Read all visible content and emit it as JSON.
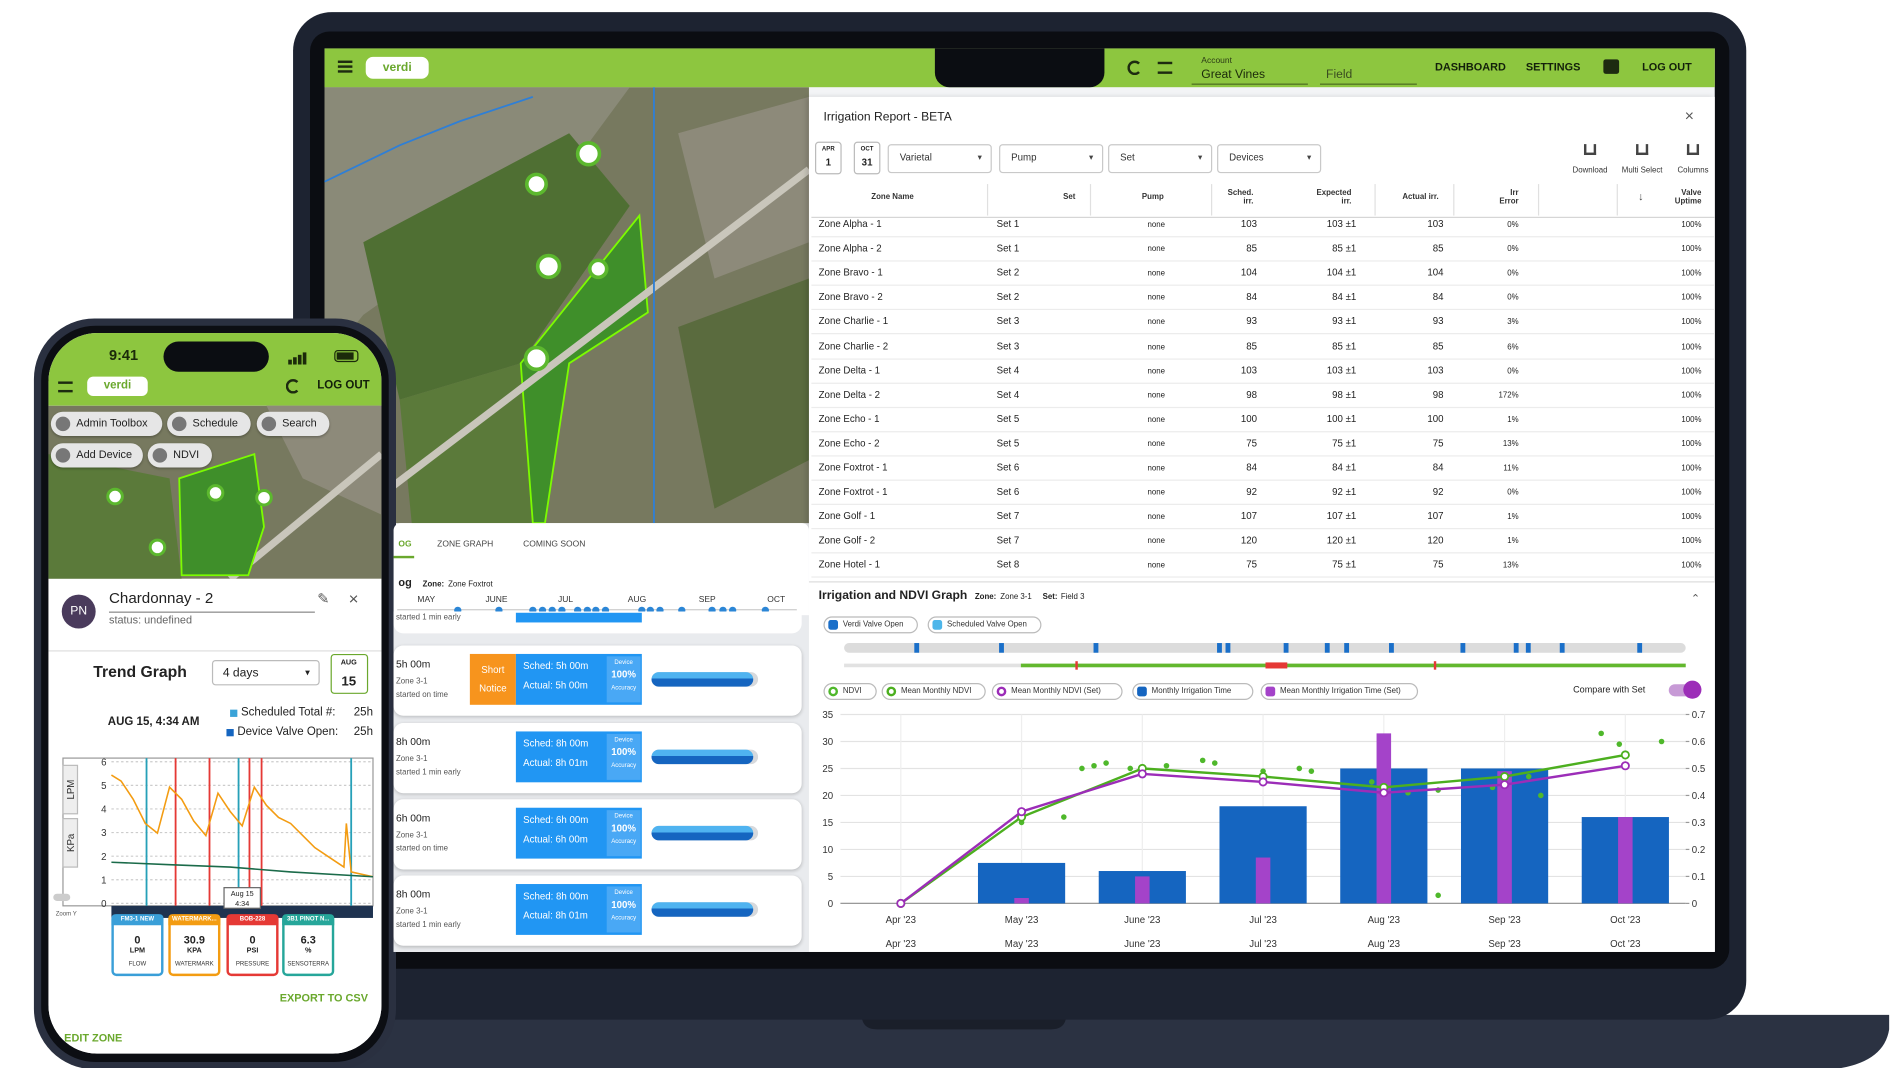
{
  "laptop": {
    "header": {
      "logo": "verdi",
      "account_label": "Account",
      "account": "Great Vines",
      "field": "Field",
      "nav": [
        "DASHBOARD",
        "SETTINGS",
        "LOG OUT"
      ]
    },
    "log_panel": {
      "tabs": [
        "OG",
        "ZONE GRAPH",
        "COMING SOON"
      ],
      "title": "og",
      "zone_label": "Zone:",
      "zone": "Zone Foxtrot",
      "months": [
        "MAY",
        "JUNE",
        "JUL",
        "AUG",
        "SEP",
        "OCT"
      ],
      "first_note": "started 1 min early",
      "cards": [
        {
          "duration": "5h 00m",
          "zone": "Zone 3-1",
          "note": "started on time",
          "badge": "Short Notice",
          "sched": "Sched: 5h 00m",
          "actual": "Actual: 5h 00m",
          "accuracy": [
            "Device",
            "100%",
            "Accuracy"
          ]
        },
        {
          "duration": "8h 00m",
          "zone": "Zone 3-1",
          "note": "started 1 min early",
          "sched": "Sched: 8h 00m",
          "actual": "Actual: 8h 01m",
          "accuracy": [
            "Device",
            "100%",
            "Accuracy"
          ]
        },
        {
          "duration": "6h 00m",
          "zone": "Zone 3-1",
          "note": "started on time",
          "sched": "Sched: 6h 00m",
          "actual": "Actual: 6h 00m",
          "accuracy": [
            "Device",
            "100%",
            "Accuracy"
          ]
        },
        {
          "duration": "8h 00m",
          "zone": "Zone 3-1",
          "note": "started 1 min early",
          "sched": "Sched: 8h 00m",
          "actual": "Actual: 8h 01m",
          "accuracy": [
            "Device",
            "100%",
            "Accuracy"
          ]
        }
      ]
    },
    "report": {
      "title": "Irrigation Report - BETA",
      "from": {
        "month": "APR",
        "day": "1"
      },
      "to": {
        "month": "OCT",
        "day": "31"
      },
      "filters": [
        "Varietal",
        "Pump",
        "Set",
        "Devices"
      ],
      "tools": [
        "Download",
        "Multi Select",
        "Columns"
      ],
      "columns": [
        "Zone Name",
        "Set",
        "Pump",
        "Sched. irr.",
        "Expected irr.",
        "Actual irr.",
        "Irr Error",
        "Valve Uptime"
      ],
      "rows": [
        [
          "Zone Alpha - 1",
          "Set 1",
          "none",
          "103",
          "103 ±1",
          "103",
          "0%",
          "100%"
        ],
        [
          "Zone Alpha - 2",
          "Set 1",
          "none",
          "85",
          "85 ±1",
          "85",
          "0%",
          "100%"
        ],
        [
          "Zone Bravo - 1",
          "Set 2",
          "none",
          "104",
          "104 ±1",
          "104",
          "0%",
          "100%"
        ],
        [
          "Zone Bravo - 2",
          "Set 2",
          "none",
          "84",
          "84 ±1",
          "84",
          "0%",
          "100%"
        ],
        [
          "Zone Charlie - 1",
          "Set 3",
          "none",
          "93",
          "93 ±1",
          "93",
          "3%",
          "100%"
        ],
        [
          "Zone Charlie - 2",
          "Set 3",
          "none",
          "85",
          "85 ±1",
          "85",
          "6%",
          "100%"
        ],
        [
          "Zone Delta - 1",
          "Set 4",
          "none",
          "103",
          "103 ±1",
          "103",
          "0%",
          "100%"
        ],
        [
          "Zone Delta - 2",
          "Set 4",
          "none",
          "98",
          "98 ±1",
          "98",
          "172%",
          "100%"
        ],
        [
          "Zone Echo - 1",
          "Set 5",
          "none",
          "100",
          "100 ±1",
          "100",
          "1%",
          "100%"
        ],
        [
          "Zone Echo - 2",
          "Set 5",
          "none",
          "75",
          "75 ±1",
          "75",
          "13%",
          "100%"
        ],
        [
          "Zone Foxtrot - 1",
          "Set 6",
          "none",
          "84",
          "84 ±1",
          "84",
          "11%",
          "100%"
        ],
        [
          "Zone Foxtrot - 1",
          "Set 6",
          "none",
          "92",
          "92 ±1",
          "92",
          "0%",
          "100%"
        ],
        [
          "Zone Golf - 1",
          "Set 7",
          "none",
          "107",
          "107 ±1",
          "107",
          "1%",
          "100%"
        ],
        [
          "Zone Golf - 2",
          "Set 7",
          "none",
          "120",
          "120 ±1",
          "120",
          "1%",
          "100%"
        ],
        [
          "Zone Hotel - 1",
          "Set 8",
          "none",
          "75",
          "75 ±1",
          "75",
          "13%",
          "100%"
        ]
      ]
    }
  },
  "chart_data": {
    "type": "bar_line",
    "title": "Irrigation and NDVI Graph",
    "zone_label": "Zone:",
    "zone": "Zone 3-1",
    "set_label": "Set:",
    "set": "Field 3",
    "toggles": [
      {
        "name": "Verdi Valve Open",
        "color": "#1a6fc9"
      },
      {
        "name": "Scheduled Valve Open",
        "color": "#4db6ea"
      }
    ],
    "compare": "Compare with Set",
    "categories": [
      "Apr '23",
      "May '23",
      "June '23",
      "Jul '23",
      "Aug '23",
      "Sep '23",
      "Oct '23"
    ],
    "series": [
      {
        "name": "NDVI",
        "type": "scatter",
        "axis": "y2",
        "color": "#4fb82b",
        "x": [
          1.0,
          1.35,
          1.5,
          1.6,
          1.7,
          1.9,
          2.2,
          2.5,
          2.6,
          3.0,
          3.3,
          3.4,
          3.9,
          4.2,
          4.45,
          4.45,
          4.9,
          5.2,
          5.3,
          5.8,
          5.95,
          6.3
        ],
        "values": [
          0.3,
          0.32,
          0.5,
          0.51,
          0.52,
          0.5,
          0.51,
          0.53,
          0.52,
          0.49,
          0.5,
          0.49,
          0.45,
          0.41,
          0.42,
          0.03,
          0.43,
          0.47,
          0.4,
          0.63,
          0.59,
          0.6
        ]
      },
      {
        "name": "Mean Monthly NDVI",
        "type": "line",
        "axis": "y2",
        "color": "#4caf1f",
        "values": [
          0,
          0.32,
          0.5,
          0.47,
          0.43,
          0.47,
          0.55
        ]
      },
      {
        "name": "Mean Monthly NDVI (Set)",
        "type": "line",
        "axis": "y2",
        "color": "#9c2db8",
        "values": [
          0,
          0.34,
          0.48,
          0.45,
          0.41,
          0.44,
          0.51
        ]
      },
      {
        "name": "Monthly Irrigation Time",
        "type": "bar",
        "color": "#1565c0",
        "values": [
          0,
          7.5,
          6,
          18,
          25,
          25,
          16
        ]
      },
      {
        "name": "Mean Monthly Irrigation Time (Set)",
        "type": "bar",
        "color": "#a443c9",
        "values": [
          0,
          1,
          5,
          8.5,
          31.5,
          24.5,
          16
        ]
      }
    ],
    "ylim": [
      0,
      35
    ],
    "yticks": [
      0,
      5,
      10,
      15,
      20,
      25,
      30,
      35
    ],
    "y2lim": [
      0,
      0.7
    ],
    "y2ticks": [
      0,
      0.1,
      0.2,
      0.3,
      0.4,
      0.5,
      0.6,
      0.7
    ],
    "grid": true
  },
  "phone": {
    "status_time": "9:41",
    "logo": "verdi",
    "logout": "LOG OUT",
    "buttons": [
      "Admin Toolbox",
      "Schedule",
      "Search",
      "Add Device",
      "NDVI"
    ],
    "avatar": "PN",
    "zone": "Chardonnay - 2",
    "status": "status: undefined",
    "trend_title": "Trend Graph",
    "range": "4 days",
    "date": {
      "month": "AUG",
      "day": "15"
    },
    "timestamp": "AUG 15, 4:34 AM",
    "legend": [
      {
        "label": "Scheduled Total #:",
        "value": "25h",
        "color": "#3aa3d8"
      },
      {
        "label": "Device Valve Open:",
        "value": "25h",
        "color": "#1565c0"
      }
    ],
    "yticks": [
      0,
      1,
      2,
      3,
      4,
      5,
      6
    ],
    "axis_labels": [
      "LPM",
      "KPa"
    ],
    "tooltip": [
      "Aug 15",
      "4:34"
    ],
    "zoom": "Zoom Y",
    "sensors": [
      {
        "name": "FM3-1 NEW",
        "value": "0",
        "unit": "LPM",
        "type": "FLOW",
        "color": "#3a9fd8"
      },
      {
        "name": "WATERMARK...",
        "value": "30.9",
        "unit": "KPA",
        "type": "WATERMARK",
        "color": "#f39c12"
      },
      {
        "name": "BOB-228",
        "value": "0",
        "unit": "PSI",
        "type": "PRESSURE",
        "color": "#e53935"
      },
      {
        "name": "3B1 PINOT N...",
        "value": "6.3",
        "unit": "%",
        "type": "SENSOTERRA",
        "color": "#26a69a"
      }
    ],
    "export": "EXPORT TO CSV",
    "edit": "EDIT ZONE"
  }
}
